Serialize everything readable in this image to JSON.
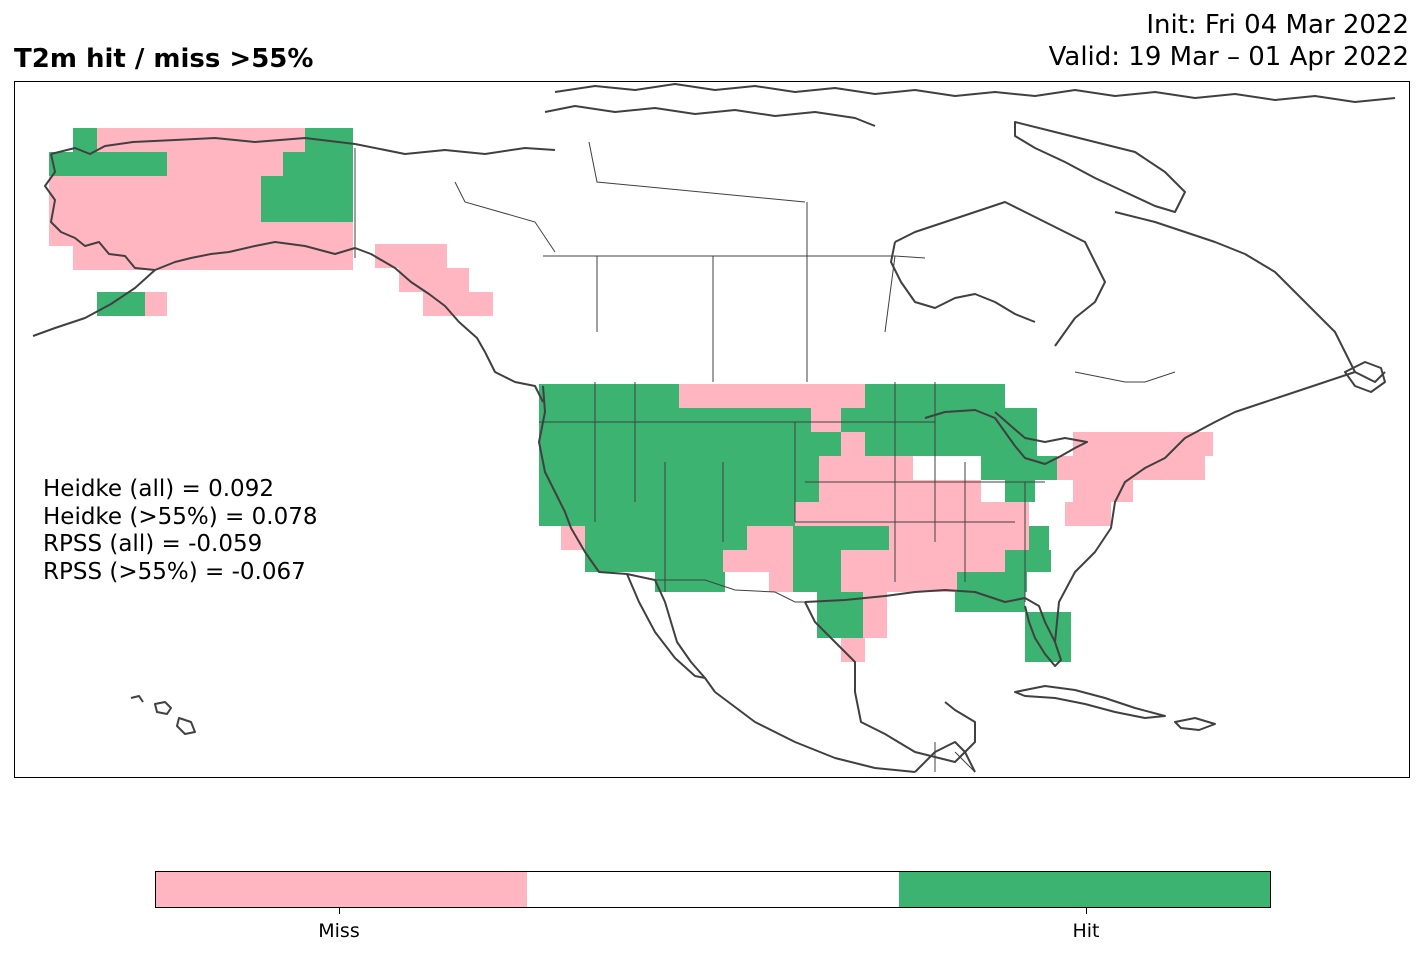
{
  "header": {
    "title": "T2m hit / miss  >55%",
    "init": "Init: Fri 04 Mar 2022",
    "valid": "Valid: 19 Mar – 01 Apr 2022"
  },
  "stats": [
    "Heidke (all) = 0.092",
    "Heidke (>55%) = 0.078",
    "RPSS (all) = -0.059",
    "RPSS (>55%) = -0.067"
  ],
  "colorbar": {
    "colors": {
      "miss": "#ffb6c1",
      "neutral": "#ffffff",
      "hit": "#3cb371"
    },
    "labels": {
      "miss": "Miss",
      "hit": "Hit"
    }
  },
  "map": {
    "region": "North America",
    "projection": "PlateCarree",
    "coastline_color": "#404040",
    "cell_values": {
      "legend": "1 = Miss, 2 = Hit",
      "alaska": [
        "2 over far west tip",
        "1 over most of mainland",
        "2 over southeast mainland block",
        "2 near Alaska Peninsula",
        "1 over panhandle"
      ],
      "conus_west": "2 across Pacific Northwest, Great Basin, Southwest and northern Rockies",
      "conus_central": "1 across central and southern Plains, Mississippi valley; 2 over Upper Midwest and Texas",
      "conus_east": "2 over Great Lakes, Georgia, Florida; 1 over Northeast and mid-Atlantic"
    }
  }
}
